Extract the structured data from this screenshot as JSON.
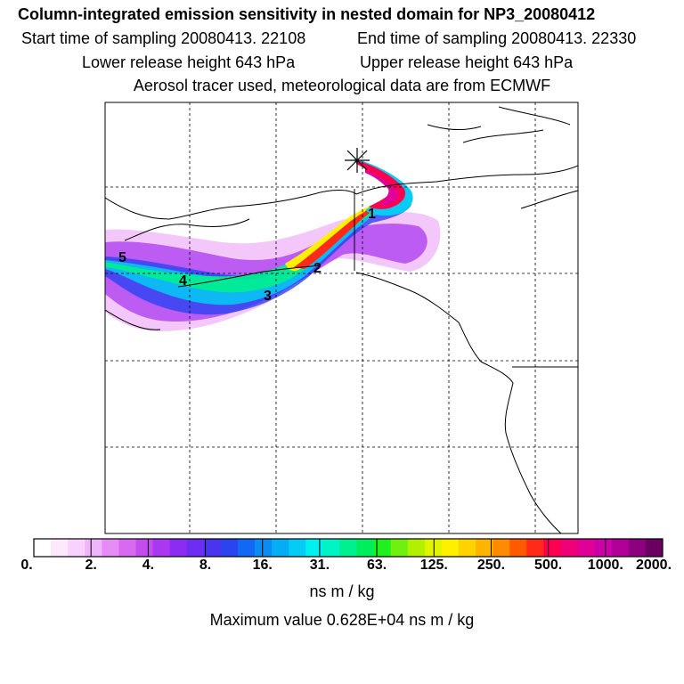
{
  "header": {
    "title": "Column-integrated emission sensitivity in nested domain for NP3_20080412",
    "start_time": "Start time of sampling 20080413. 22108",
    "end_time": "End time of sampling 20080413. 22330",
    "lower_height": "Lower release height  643 hPa",
    "upper_height": "Upper release height  643 hPa",
    "tracer_info": "Aerosol tracer used, meteorological data are from ECMWF"
  },
  "map": {
    "day_labels": [
      "1",
      "2",
      "3",
      "4",
      "5"
    ]
  },
  "colorbar": {
    "tick_labels": [
      "0.",
      "2.",
      "4.",
      "8.",
      "16.",
      "31.",
      "63.",
      "125.",
      "250.",
      "500.",
      "1000.",
      "2000."
    ],
    "unit": "ns m / kg",
    "max_value": "Maximum value  0.628E+04 ns m / kg",
    "colors": [
      "#ffffff",
      "#fde9fe",
      "#f8d2fc",
      "#f0b4fa",
      "#e68cf6",
      "#d86af2",
      "#c44cee",
      "#aa38f0",
      "#8a2cf2",
      "#6c2ef2",
      "#4a34f0",
      "#2a44f2",
      "#1068f4",
      "#0a8cf2",
      "#06acf4",
      "#04ccf4",
      "#00f0f0",
      "#00f4c4",
      "#00f090",
      "#00ee5a",
      "#20f020",
      "#70f010",
      "#b0f000",
      "#e0f400",
      "#fff000",
      "#ffd200",
      "#ffb400",
      "#ff8c00",
      "#ff5a00",
      "#ff2a1a",
      "#ff0050",
      "#f00078",
      "#e00098",
      "#cc00a8",
      "#b00098",
      "#8c0080",
      "#6a0060"
    ]
  }
}
